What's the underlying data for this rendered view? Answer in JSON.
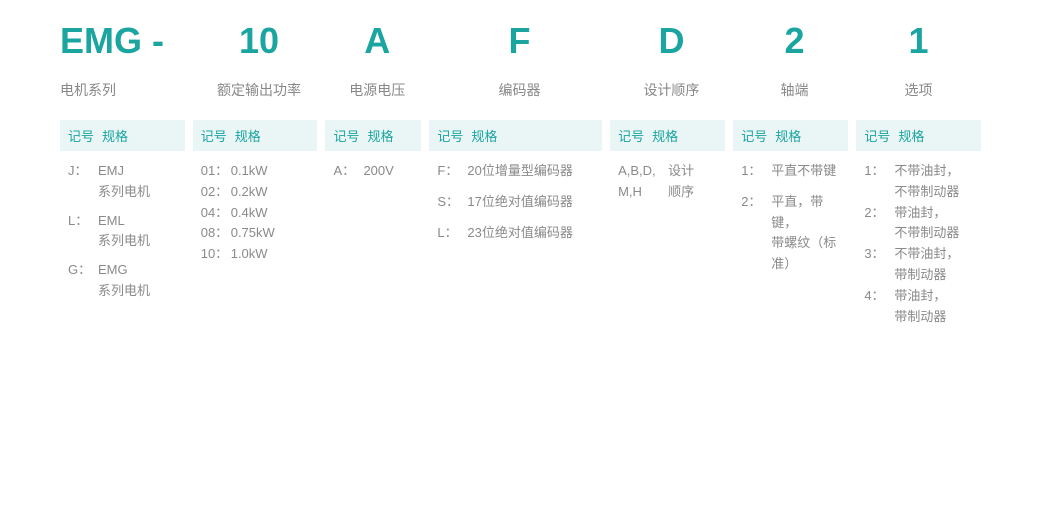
{
  "colors": {
    "accent": "#1aa5a0",
    "headerBg": "#eaf5f5",
    "text": "#8a8a8a",
    "labelText": "#888"
  },
  "typography": {
    "codeFontSize": 36,
    "codeFontWeight": 700,
    "labelFontSize": 14,
    "bodyFontSize": 13
  },
  "codeParts": [
    "EMG -",
    "10",
    "A",
    "F",
    "D",
    "2",
    "1"
  ],
  "labels": [
    "电机系列",
    "额定输出功率",
    "电源电压",
    "编码器",
    "设计顺序",
    "轴端",
    "选项"
  ],
  "headerCode": "记号",
  "headerSpec": "规格",
  "widths": [
    130,
    130,
    100,
    180,
    120,
    120,
    130
  ],
  "columns": [
    {
      "rows": [
        {
          "code": "J：",
          "spec": "EMJ",
          "sub": "系列电机"
        },
        {
          "code": "L：",
          "spec": "EML",
          "sub": "系列电机"
        },
        {
          "code": "G：",
          "spec": "EMG",
          "sub": "系列电机"
        }
      ]
    },
    {
      "rows": [
        {
          "code": "01：",
          "spec": "0.1kW"
        },
        {
          "code": "02：",
          "spec": "0.2kW"
        },
        {
          "code": "04：",
          "spec": "0.4kW"
        },
        {
          "code": "08：",
          "spec": "0.75kW"
        },
        {
          "code": "10：",
          "spec": "1.0kW"
        }
      ]
    },
    {
      "rows": [
        {
          "code": "A：",
          "spec": "200V"
        }
      ]
    },
    {
      "rows": [
        {
          "code": "F：",
          "spec": "20位增量型编码器",
          "gap": true
        },
        {
          "code": "S：",
          "spec": "17位绝对值编码器",
          "gap": true
        },
        {
          "code": "L：",
          "spec": "23位绝对值编码器"
        }
      ]
    },
    {
      "rows": [
        {
          "code": "A,B,D,",
          "spec": "设计",
          "wide": true
        },
        {
          "code": "M,H",
          "spec": "顺序",
          "wide": true
        }
      ]
    },
    {
      "rows": [
        {
          "code": "1：",
          "spec": "平直不带键",
          "gap": true
        },
        {
          "code": "2：",
          "spec": "平直，带键，",
          "sub": "带螺纹（标准）"
        }
      ]
    },
    {
      "rows": [
        {
          "code": "1：",
          "spec": "不带油封，",
          "sub": "不带制动器"
        },
        {
          "code": "2：",
          "spec": "带油封，",
          "sub": "不带制动器"
        },
        {
          "code": "3：",
          "spec": "不带油封，",
          "sub": "带制动器"
        },
        {
          "code": "4：",
          "spec": "带油封，",
          "sub": "带制动器"
        }
      ]
    }
  ]
}
